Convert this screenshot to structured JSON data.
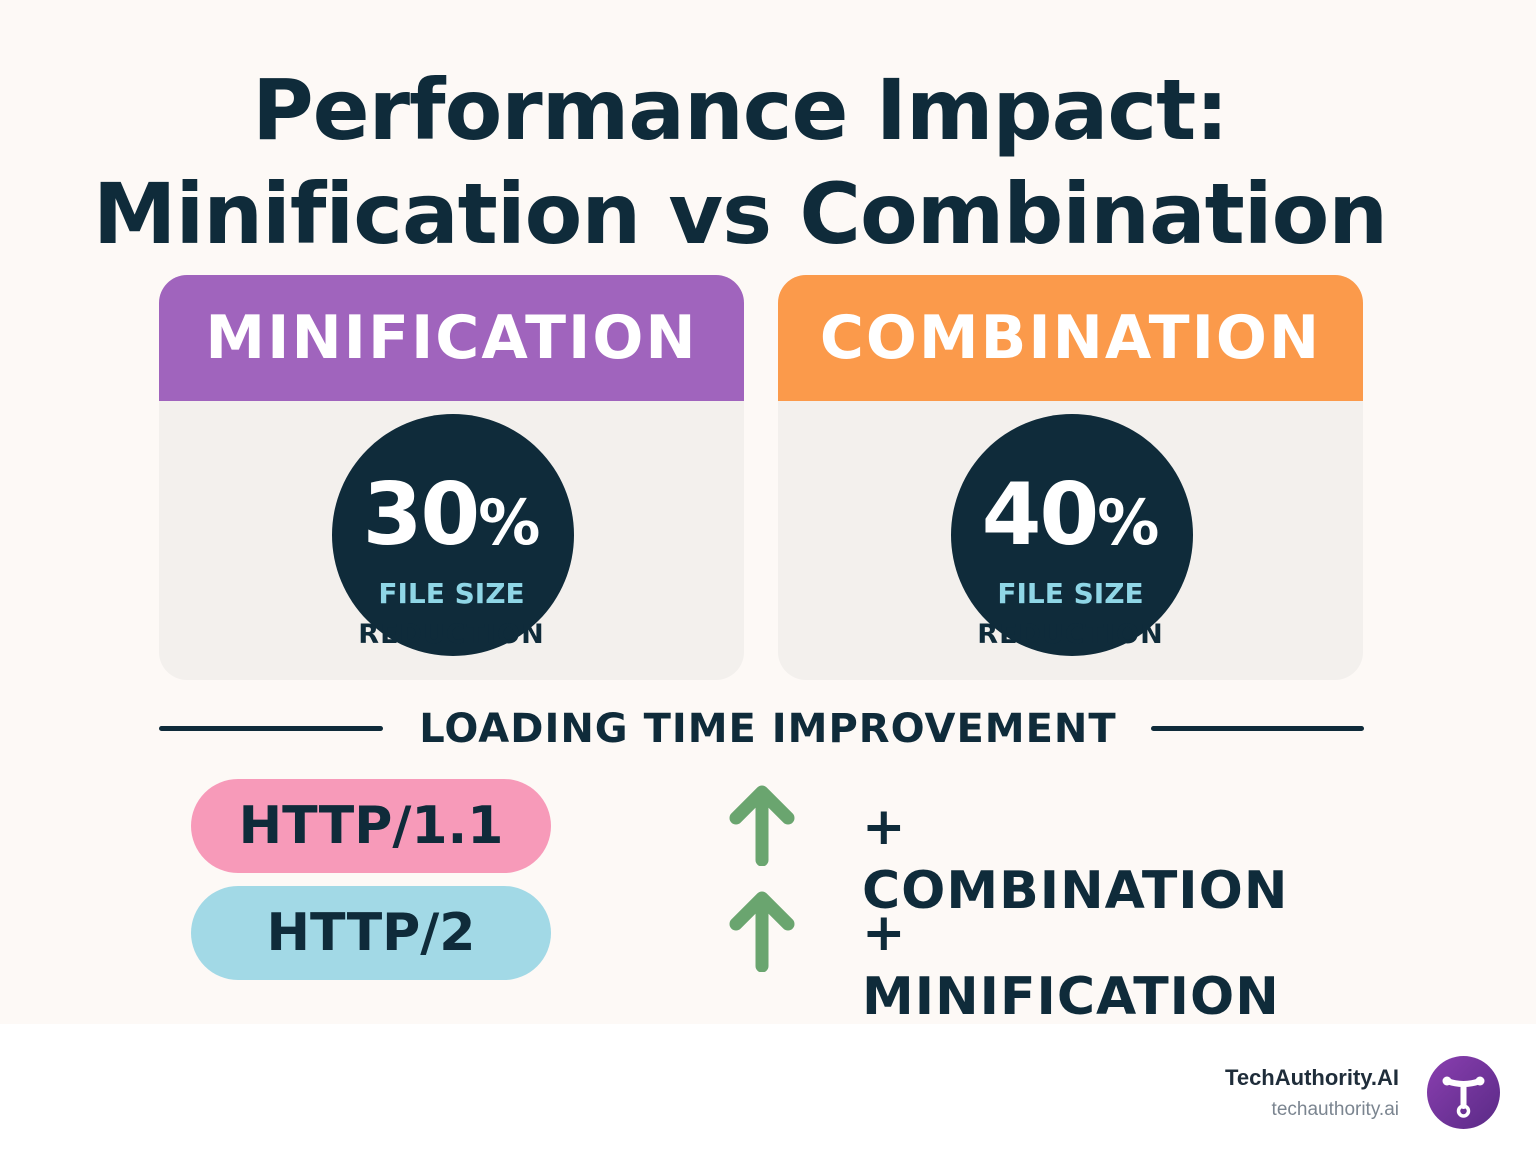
{
  "title": {
    "line1": "Performance Impact:",
    "line2": "Minification vs Combination"
  },
  "cards": [
    {
      "heading": "MINIFICATION",
      "value": "30",
      "unit": "%",
      "label_top": "FILE SIZE",
      "label_bottom": "REDUCTION",
      "header_color": "#a064bd"
    },
    {
      "heading": "COMBINATION",
      "value": "40",
      "unit": "%",
      "label_top": "FILE SIZE",
      "label_bottom": "REDUCTION",
      "header_color": "#fb9a4b"
    }
  ],
  "section": {
    "label": "LOADING TIME IMPROVEMENT"
  },
  "rows": [
    {
      "protocol": "HTTP/1.1",
      "technique": "+ COMBINATION",
      "pill_color": "#f79ab9",
      "icon": "arrow-up-icon"
    },
    {
      "protocol": "HTTP/2",
      "technique": "+ MINIFICATION",
      "pill_color": "#a2d9e6",
      "icon": "arrow-up-icon"
    }
  ],
  "colors": {
    "dark": "#0f2b3a",
    "arrow": "#6aa56f",
    "accent_text": "#8fd6e6"
  },
  "branding": {
    "name": "TechAuthority.AI",
    "url": "techauthority.ai",
    "logo_icon": "techauthority-logo-icon"
  }
}
